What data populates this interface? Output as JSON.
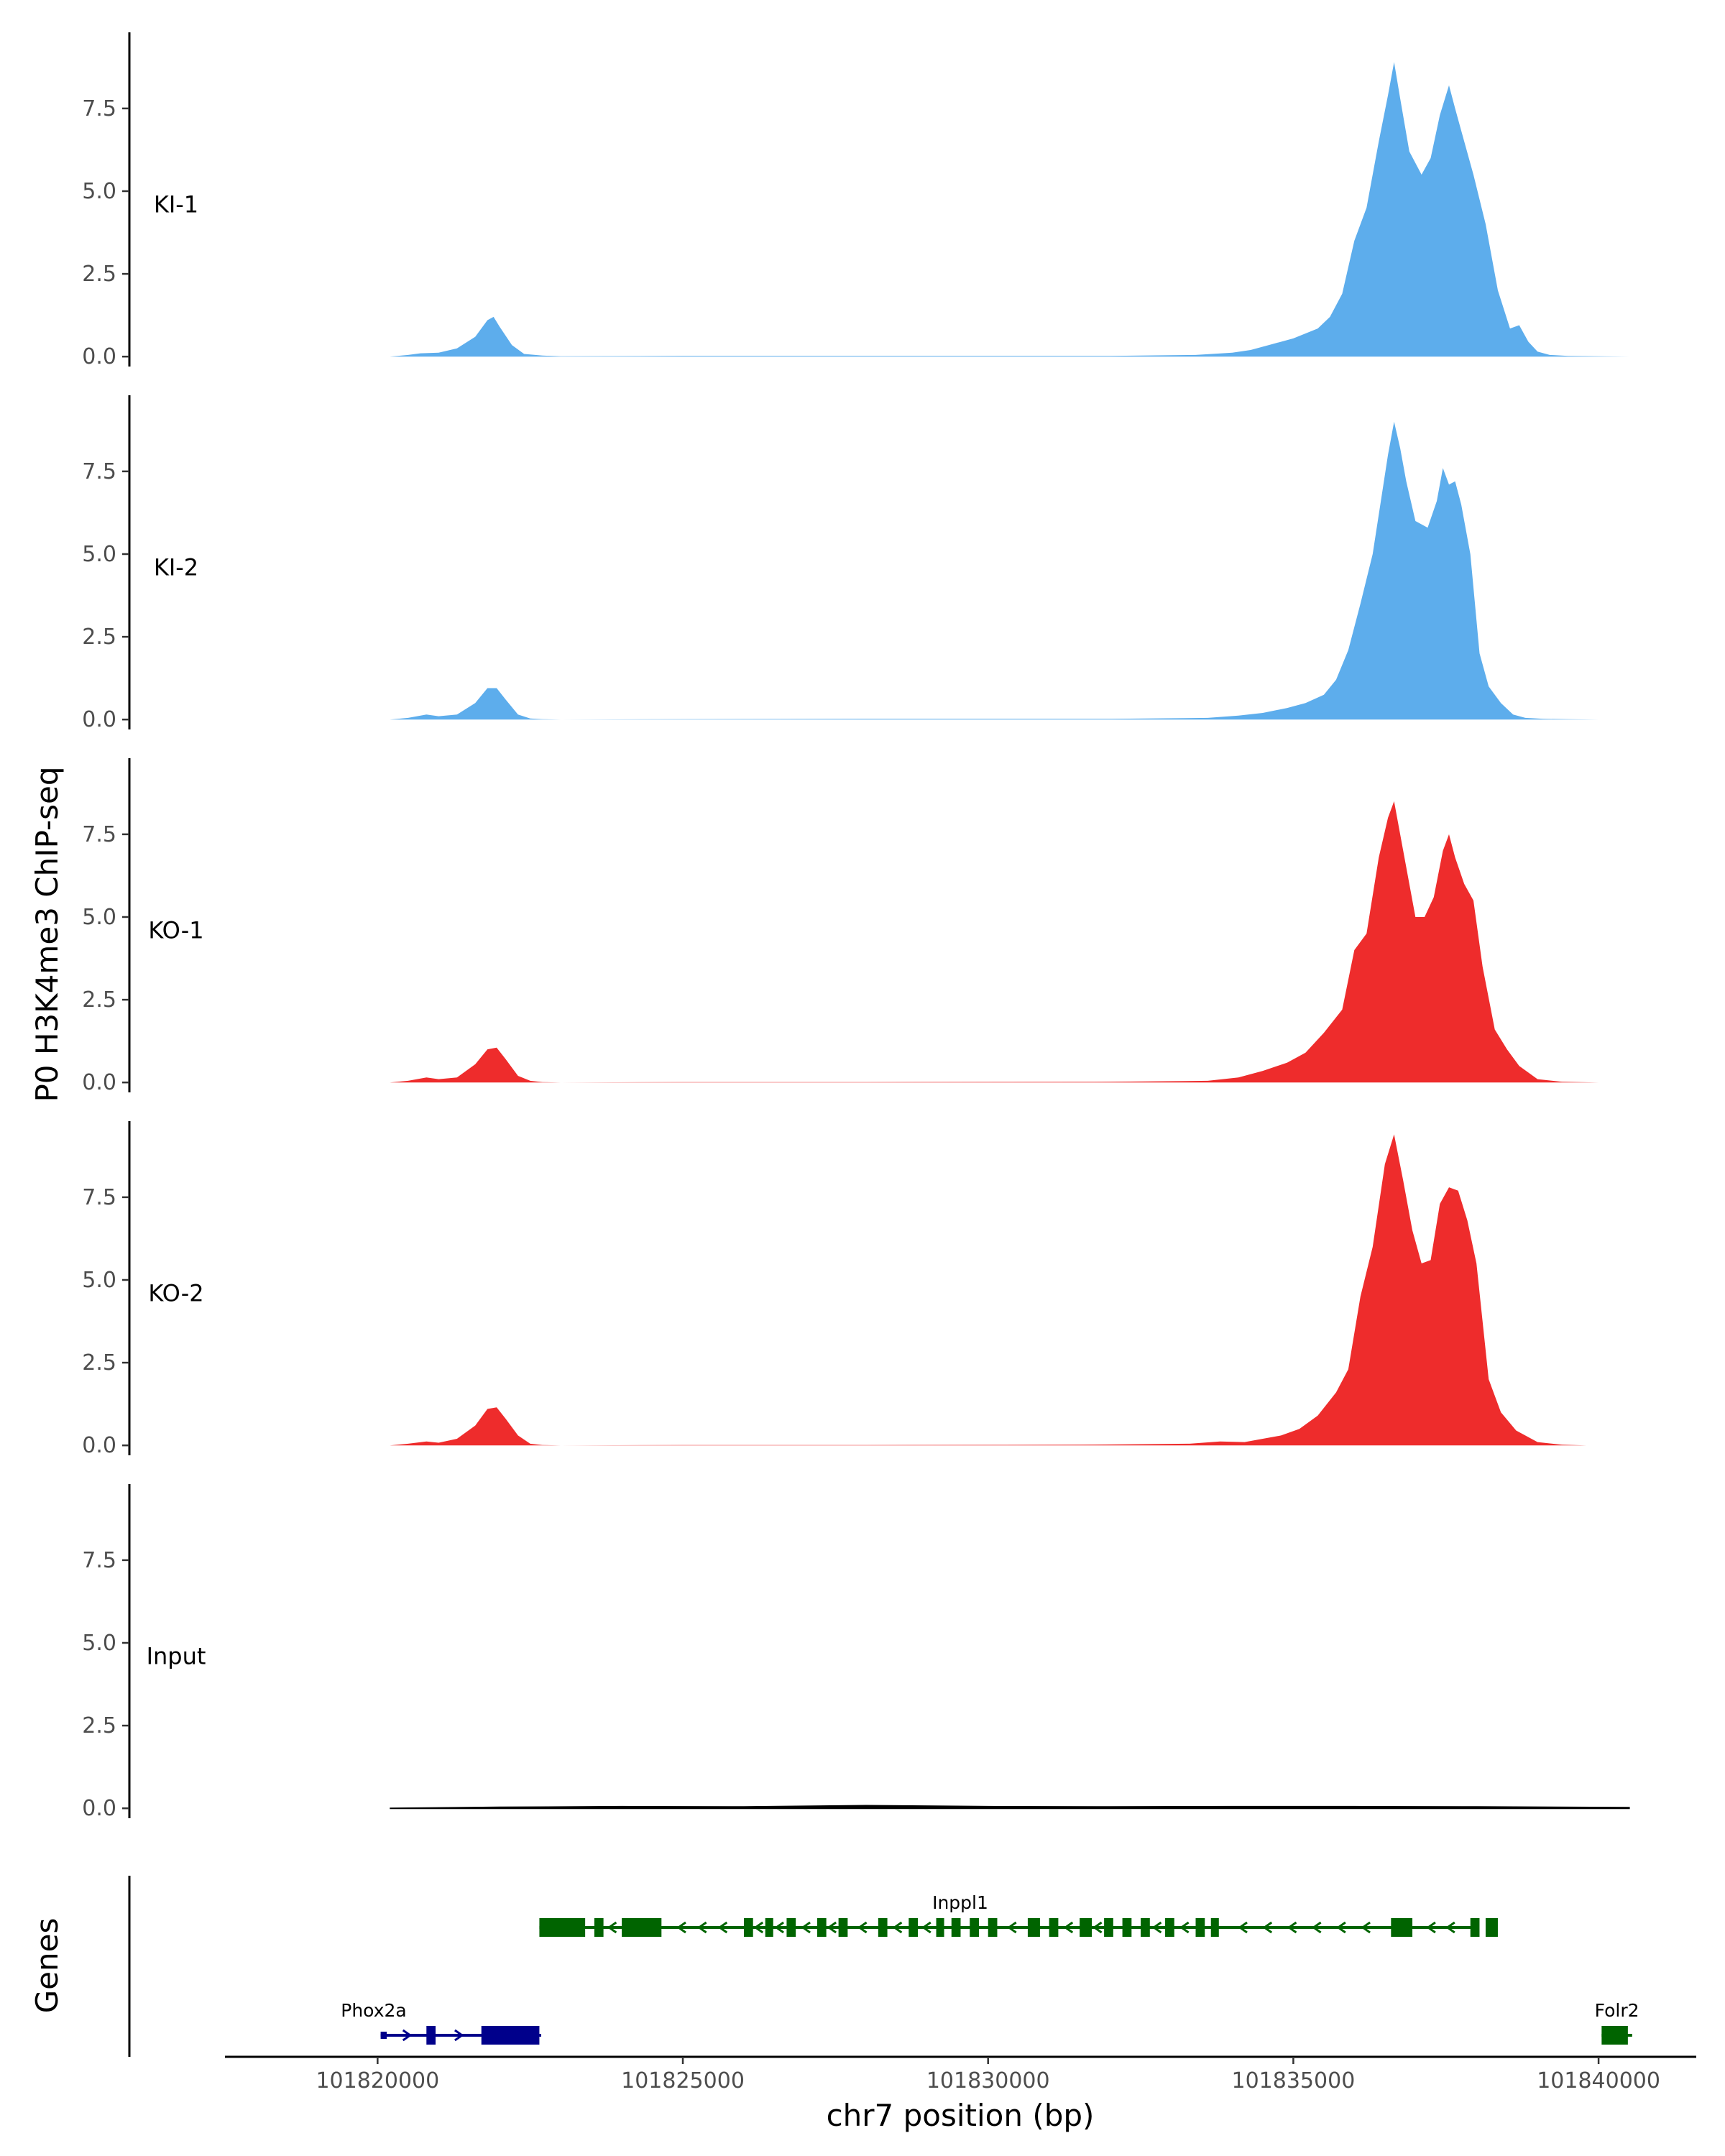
{
  "chart_data": {
    "type": "area",
    "y_axis_title": "P0 H3K4me3 ChIP-seq",
    "x_axis_title": "chr7 position (bp)",
    "xlim": [
      101817500,
      101841600
    ],
    "ylim": [
      -0.3,
      9.8
    ],
    "y_ticks": [
      0.0,
      2.5,
      5.0,
      7.5
    ],
    "y_tick_labels": [
      "0.0",
      "2.5",
      "5.0",
      "7.5"
    ],
    "x_ticks": [
      101820000,
      101825000,
      101830000,
      101835000,
      101840000
    ],
    "x_tick_labels": [
      "101820000",
      "101825000",
      "101830000",
      "101835000",
      "101840000"
    ],
    "colors": {
      "KI": "#5DADEC",
      "KO": "#EE2C2C",
      "Input": "#000000",
      "minus_strand_gene": "#006400",
      "plus_strand_gene": "#00008B"
    },
    "tracks": [
      {
        "name": "KI-1",
        "color": "#5DADEC",
        "x": [
          101820200,
          101820500,
          101820700,
          101821000,
          101821300,
          101821600,
          101821800,
          101821900,
          101822000,
          101822200,
          101822400,
          101822700,
          101823000,
          101825000,
          101828000,
          101832000,
          101833400,
          101834000,
          101834300,
          101834600,
          101835000,
          101835400,
          101835600,
          101835800,
          101836000,
          101836200,
          101836400,
          101836550,
          101836650,
          101836750,
          101836900,
          101837100,
          101837250,
          101837400,
          101837550,
          101837650,
          101837800,
          101837950,
          101838150,
          101838350,
          101838550,
          101838700,
          101838850,
          101839000,
          101839200,
          101839500,
          101840000,
          101840500
        ],
        "values": [
          0.0,
          0.05,
          0.1,
          0.12,
          0.25,
          0.6,
          1.1,
          1.2,
          0.9,
          0.35,
          0.08,
          0.03,
          0.01,
          0.02,
          0.02,
          0.02,
          0.05,
          0.12,
          0.2,
          0.35,
          0.55,
          0.85,
          1.2,
          1.9,
          3.5,
          4.5,
          6.5,
          7.9,
          8.9,
          7.8,
          6.2,
          5.5,
          6.0,
          7.3,
          8.2,
          7.5,
          6.5,
          5.5,
          4.0,
          2.0,
          0.85,
          0.95,
          0.45,
          0.15,
          0.05,
          0.02,
          0.01,
          0.0
        ]
      },
      {
        "name": "KI-2",
        "color": "#5DADEC",
        "x": [
          101820200,
          101820500,
          101820800,
          101821000,
          101821300,
          101821600,
          101821800,
          101821950,
          101822100,
          101822300,
          101822500,
          101822700,
          101823000,
          101825000,
          101828000,
          101832000,
          101833600,
          101834100,
          101834500,
          101834900,
          101835200,
          101835500,
          101835700,
          101835900,
          101836100,
          101836300,
          101836450,
          101836550,
          101836650,
          101836750,
          101836850,
          101837000,
          101837200,
          101837350,
          101837450,
          101837550,
          101837650,
          101837750,
          101837900,
          101838050,
          101838200,
          101838400,
          101838600,
          101838800,
          101839100,
          101839500,
          101840000,
          101840400
        ],
        "values": [
          0.0,
          0.05,
          0.15,
          0.1,
          0.15,
          0.5,
          0.95,
          0.95,
          0.6,
          0.15,
          0.03,
          0.01,
          0.0,
          0.01,
          0.02,
          0.02,
          0.05,
          0.12,
          0.2,
          0.35,
          0.5,
          0.75,
          1.2,
          2.1,
          3.5,
          5.0,
          6.8,
          8.0,
          9.0,
          8.2,
          7.2,
          6.0,
          5.8,
          6.6,
          7.6,
          7.1,
          7.2,
          6.5,
          5.0,
          2.0,
          1.0,
          0.5,
          0.15,
          0.05,
          0.02,
          0.01,
          0.0,
          0.0
        ]
      },
      {
        "name": "KO-1",
        "color": "#EE2C2C",
        "x": [
          101820200,
          101820500,
          101820800,
          101821000,
          101821300,
          101821600,
          101821800,
          101821950,
          101822100,
          101822300,
          101822500,
          101822700,
          101823000,
          101825000,
          101828000,
          101832000,
          101833600,
          101834100,
          101834500,
          101834900,
          101835200,
          101835500,
          101835800,
          101836000,
          101836200,
          101836400,
          101836550,
          101836650,
          101836800,
          101837000,
          101837150,
          101837300,
          101837450,
          101837550,
          101837650,
          101837800,
          101837950,
          101838100,
          101838300,
          101838500,
          101838700,
          101839000,
          101839400,
          101840000,
          101840500
        ],
        "values": [
          0.0,
          0.05,
          0.15,
          0.1,
          0.15,
          0.55,
          1.0,
          1.05,
          0.7,
          0.2,
          0.05,
          0.01,
          0.0,
          0.01,
          0.01,
          0.02,
          0.05,
          0.15,
          0.35,
          0.6,
          0.9,
          1.5,
          2.2,
          4.0,
          4.5,
          6.8,
          8.0,
          8.5,
          7.0,
          5.0,
          5.0,
          5.6,
          7.0,
          7.5,
          6.8,
          6.0,
          5.5,
          3.5,
          1.6,
          1.0,
          0.5,
          0.1,
          0.02,
          0.0,
          0.0
        ]
      },
      {
        "name": "KO-2",
        "color": "#EE2C2C",
        "x": [
          101820200,
          101820500,
          101820800,
          101821000,
          101821300,
          101821600,
          101821800,
          101821950,
          101822100,
          101822300,
          101822500,
          101822700,
          101823000,
          101825000,
          101828000,
          101831500,
          101833300,
          101833800,
          101834200,
          101834500,
          101834800,
          101835100,
          101835400,
          101835700,
          101835900,
          101836100,
          101836300,
          101836500,
          101836650,
          101836800,
          101836950,
          101837100,
          101837250,
          101837400,
          101837550,
          101837700,
          101837850,
          101838000,
          101838200,
          101838400,
          101838650,
          101839000,
          101839400,
          101839800
        ],
        "values": [
          0.0,
          0.05,
          0.12,
          0.08,
          0.2,
          0.6,
          1.1,
          1.15,
          0.8,
          0.3,
          0.05,
          0.01,
          0.0,
          0.01,
          0.01,
          0.02,
          0.05,
          0.12,
          0.1,
          0.2,
          0.3,
          0.5,
          0.9,
          1.6,
          2.3,
          4.5,
          6.0,
          8.5,
          9.4,
          8.0,
          6.5,
          5.5,
          5.6,
          7.3,
          7.8,
          7.7,
          6.8,
          5.5,
          2.0,
          1.0,
          0.45,
          0.1,
          0.02,
          0.0
        ]
      },
      {
        "name": "Input",
        "color": "#000000",
        "x": [
          101820200,
          101822000,
          101824000,
          101826000,
          101828000,
          101830000,
          101832000,
          101834000,
          101836000,
          101838000,
          101840500
        ],
        "values": [
          0.0,
          0.03,
          0.05,
          0.04,
          0.08,
          0.05,
          0.04,
          0.05,
          0.05,
          0.04,
          0.02
        ]
      }
    ],
    "genes_axis_title": "Genes",
    "genes": [
      {
        "name": "Inppl1",
        "strand": "-",
        "row": 1,
        "start": 101822650,
        "end": 101838000,
        "color": "#006400",
        "exons": [
          [
            101822650,
            101823400,
            "cds"
          ],
          [
            101823550,
            101823700,
            "cds"
          ],
          [
            101824000,
            101824650,
            "cds"
          ],
          [
            101826000,
            101826150,
            "cds"
          ],
          [
            101826350,
            101826480,
            "cds"
          ],
          [
            101826700,
            101826850,
            "cds"
          ],
          [
            101827200,
            101827350,
            "cds"
          ],
          [
            101827550,
            101827700,
            "cds"
          ],
          [
            101828200,
            101828350,
            "cds"
          ],
          [
            101828700,
            101828850,
            "cds"
          ],
          [
            101829150,
            101829280,
            "cds"
          ],
          [
            101829400,
            101829550,
            "cds"
          ],
          [
            101829700,
            101829850,
            "cds"
          ],
          [
            101830000,
            101830150,
            "cds"
          ],
          [
            101830650,
            101830850,
            "cds"
          ],
          [
            101831000,
            101831150,
            "cds"
          ],
          [
            101831500,
            101831700,
            "cds"
          ],
          [
            101831900,
            101832050,
            "cds"
          ],
          [
            101832200,
            101832350,
            "cds"
          ],
          [
            101832500,
            101832650,
            "cds"
          ],
          [
            101832900,
            101833050,
            "cds"
          ],
          [
            101833400,
            101833550,
            "cds"
          ],
          [
            101833650,
            101833780,
            "cds"
          ],
          [
            101836600,
            101836950,
            "cds"
          ],
          [
            101837900,
            101838050,
            "cds"
          ],
          [
            101838150,
            101838350,
            "cds"
          ]
        ]
      },
      {
        "name": "Phox2a",
        "strand": "+",
        "row": 2,
        "start": 101820050,
        "end": 101822680,
        "color": "#00008B",
        "exons": [
          [
            101820050,
            101820150,
            "utr"
          ],
          [
            101820800,
            101820950,
            "cds"
          ],
          [
            101821700,
            101822650,
            "cds"
          ]
        ]
      },
      {
        "name": "Folr2",
        "strand": "-",
        "row": 2,
        "start": 101840050,
        "end": 101840550,
        "color": "#006400",
        "exons": [
          [
            101840050,
            101840480,
            "cds"
          ]
        ]
      }
    ]
  }
}
